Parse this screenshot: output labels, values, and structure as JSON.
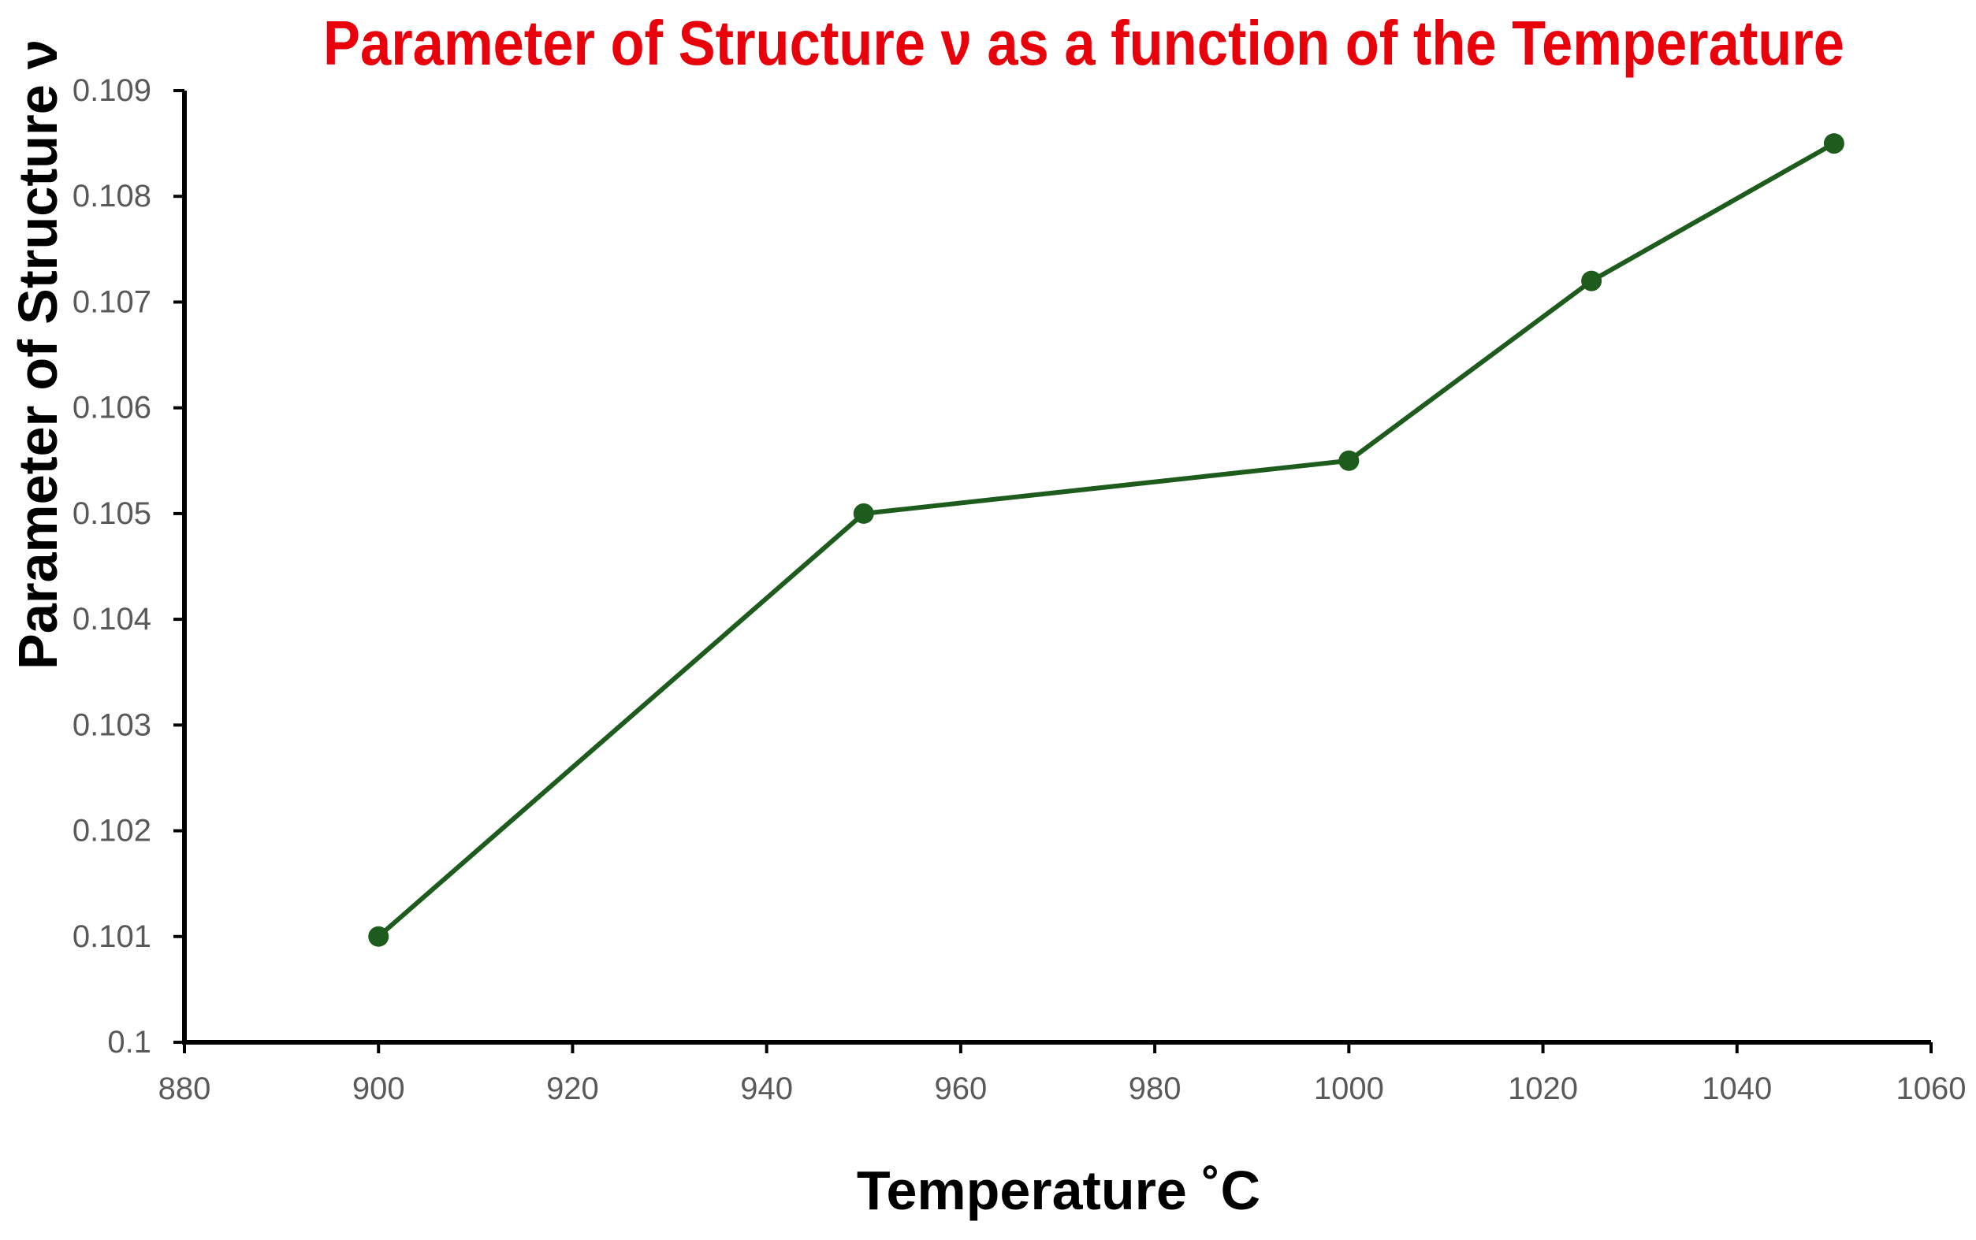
{
  "chart_data": {
    "type": "line",
    "title": "Parameter of Structure ν as a function of the Temperature",
    "xlabel": "Temperature  ˚C",
    "ylabel": "Parameter of Structure ν",
    "xlim": [
      880,
      1060
    ],
    "ylim": [
      0.1,
      0.109
    ],
    "x_ticks": [
      "880",
      "900",
      "920",
      "940",
      "960",
      "980",
      "1000",
      "1020",
      "1040",
      "1060"
    ],
    "y_ticks": [
      "0.1",
      "0.101",
      "0.102",
      "0.103",
      "0.104",
      "0.105",
      "0.106",
      "0.107",
      "0.108",
      "0.109"
    ],
    "grid": false,
    "legend": "none",
    "series": [
      {
        "color": "#1e5c1e",
        "x": [
          900,
          950,
          1000,
          1025,
          1050
        ],
        "y": [
          0.101,
          0.105,
          0.1055,
          0.1072,
          0.1085
        ]
      }
    ],
    "colors": {
      "title": "#e8000b",
      "axis": "#000000",
      "tick_label": "#595959",
      "series": "#1e5c1e"
    }
  }
}
